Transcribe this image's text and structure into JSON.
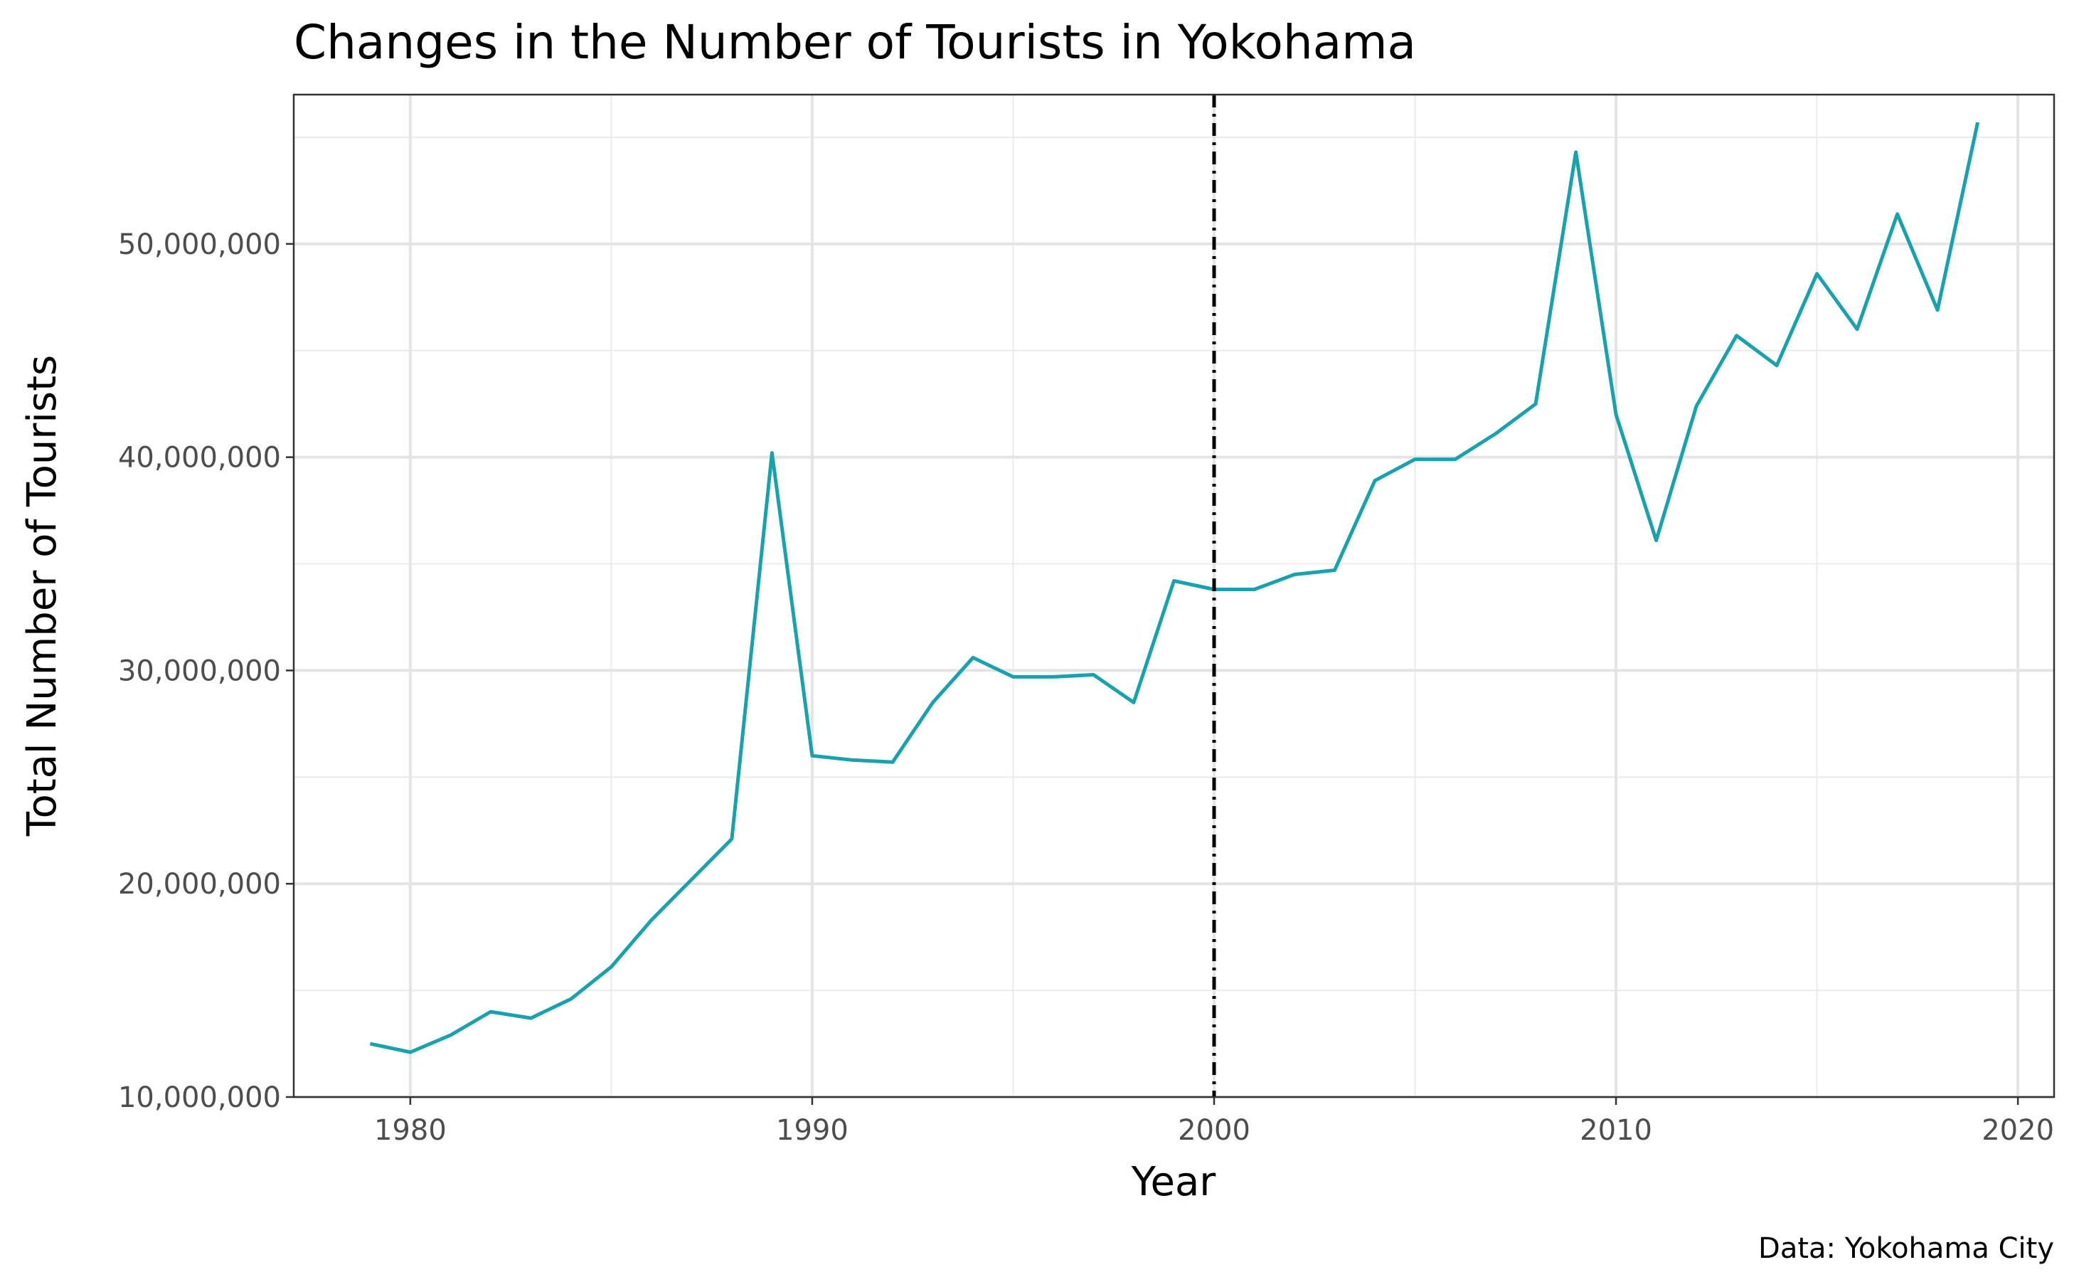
{
  "chart_data": {
    "type": "line",
    "title": "Changes in the Number of Tourists in Yokohama",
    "xlabel": "Year",
    "ylabel": "Total Number of Tourists",
    "caption": "Data: Yokohama City",
    "xlim": [
      1977.1,
      2020.9
    ],
    "ylim": [
      10000000,
      57000000
    ],
    "x_ticks": [
      1980,
      1990,
      2000,
      2010,
      2020
    ],
    "x_minor": [
      1975,
      1985,
      1995,
      2005,
      2015
    ],
    "y_ticks": [
      10000000,
      20000000,
      30000000,
      40000000,
      50000000
    ],
    "y_tick_labels": [
      "10,000,000",
      "20,000,000",
      "30,000,000",
      "40,000,000",
      "50,000,000"
    ],
    "y_minor": [
      15000000,
      25000000,
      35000000,
      45000000,
      55000000
    ],
    "grid": true,
    "line_color": "#17a2ad",
    "vline": {
      "x": 2000,
      "style": "dashdot",
      "color": "#000000"
    },
    "x": [
      1979,
      1980,
      1981,
      1982,
      1983,
      1984,
      1985,
      1986,
      1987,
      1988,
      1989,
      1990,
      1991,
      1992,
      1993,
      1994,
      1995,
      1996,
      1997,
      1998,
      1999,
      2000,
      2001,
      2002,
      2003,
      2004,
      2005,
      2006,
      2007,
      2008,
      2009,
      2010,
      2011,
      2012,
      2013,
      2014,
      2015,
      2016,
      2017,
      2018,
      2019
    ],
    "y": [
      12500000,
      12100000,
      12900000,
      14000000,
      13700000,
      14600000,
      16100000,
      18300000,
      20200000,
      22100000,
      40200000,
      26000000,
      25800000,
      25700000,
      28500000,
      30600000,
      29700000,
      29700000,
      29800000,
      28500000,
      34200000,
      33800000,
      33800000,
      34500000,
      34700000,
      38900000,
      39900000,
      39900000,
      41100000,
      42500000,
      54300000,
      42000000,
      36100000,
      42400000,
      45700000,
      44300000,
      48600000,
      46000000,
      51400000,
      46900000,
      55700000
    ]
  }
}
